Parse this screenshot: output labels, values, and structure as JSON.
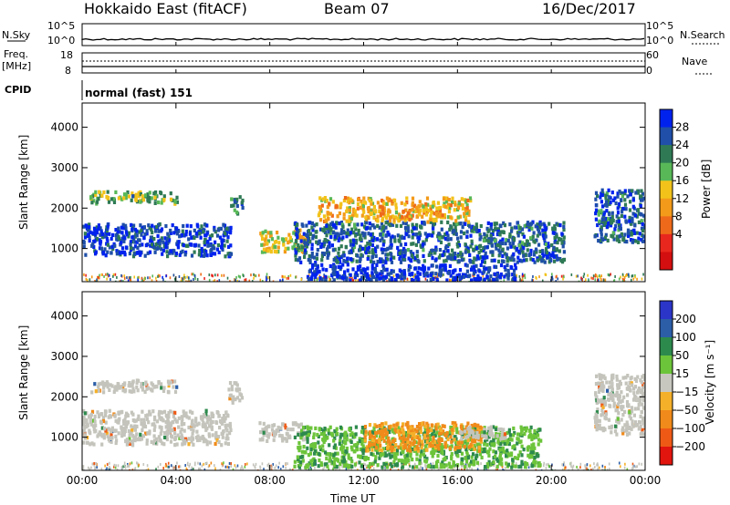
{
  "header": {
    "title": "Hokkaido East (fitACF)",
    "beam": "Beam 07",
    "date": "16/Dec/2017"
  },
  "top_panels": {
    "nsky_label": "N.Sky",
    "nsky_ticks": [
      "10^5",
      "10^0"
    ],
    "nsearch_label": "N.Search",
    "nsearch_ticks": [
      "10^5",
      "10^0"
    ],
    "freq_label_1": "Freq.",
    "freq_label_2": "[MHz]",
    "freq_ticks": [
      "18",
      "8"
    ],
    "nave_label": "Nave",
    "nave_ticks": [
      "60",
      "0"
    ],
    "cpid_label": "CPID",
    "cpid_value": "normal (fast) 151"
  },
  "colors": {
    "power_scale": [
      "#0022ee",
      "#1f4fa8",
      "#2f7a55",
      "#58b858",
      "#f2c21a",
      "#f39a1a",
      "#ee6a1a",
      "#e8281e",
      "#d40f0f"
    ],
    "velocity_scale": [
      "#2b35c8",
      "#2c5ea8",
      "#2d8a4d",
      "#6cc43a",
      "#c7c7c0",
      "#f5b02a",
      "#f08a1a",
      "#ee5a16",
      "#e2140e"
    ],
    "ground_scatter": "#c4c4bc"
  },
  "chart_data": [
    {
      "type": "heatmap",
      "panel": "power",
      "ylabel": "Slant Range [km]",
      "y_ticks": [
        1000,
        2000,
        3000,
        4000
      ],
      "ylim": [
        180,
        4600
      ],
      "x_ticks": [
        "00:00",
        "04:00",
        "08:00",
        "12:00",
        "16:00",
        "20:00",
        "00:00"
      ],
      "xlim_hours": [
        0,
        24
      ],
      "colorbar": {
        "label": "Power [dB]",
        "ticks": [
          "28",
          "24",
          "20",
          "16",
          "12",
          "8",
          "4"
        ],
        "range": [
          0,
          32
        ]
      },
      "regions": [
        {
          "t0": 0.0,
          "t1": 6.3,
          "r0": 850,
          "r1": 1650,
          "value": 28
        },
        {
          "t0": 0.3,
          "t1": 4.0,
          "r0": 2150,
          "r1": 2450,
          "value": 20
        },
        {
          "t0": 6.3,
          "t1": 6.8,
          "r0": 1900,
          "r1": 2350,
          "value": 24
        },
        {
          "t0": 7.5,
          "t1": 9.5,
          "r0": 950,
          "r1": 1500,
          "value": 16
        },
        {
          "t0": 9.0,
          "t1": 20.5,
          "r0": 700,
          "r1": 1700,
          "value": 26
        },
        {
          "t0": 9.5,
          "t1": 18.5,
          "r0": 250,
          "r1": 650,
          "value": 30
        },
        {
          "t0": 10.0,
          "t1": 16.5,
          "r0": 1700,
          "r1": 2300,
          "value": 14
        },
        {
          "t0": 21.8,
          "t1": 24.0,
          "r0": 1200,
          "r1": 2500,
          "value": 26
        }
      ]
    },
    {
      "type": "heatmap",
      "panel": "velocity",
      "ylabel": "Slant Range [km]",
      "y_ticks": [
        1000,
        2000,
        3000,
        4000
      ],
      "ylim": [
        180,
        4600
      ],
      "x_ticks": [
        "00:00",
        "04:00",
        "08:00",
        "12:00",
        "16:00",
        "20:00",
        "00:00"
      ],
      "xlabel": "Time UT",
      "xlim_hours": [
        0,
        24
      ],
      "colorbar": {
        "label": "Velocity [m s⁻¹]",
        "ticks": [
          "200",
          "100",
          "50",
          "15",
          "−15",
          "−50",
          "−100",
          "−200"
        ],
        "range": [
          -250,
          250
        ]
      },
      "regions": [
        {
          "t0": 0.0,
          "t1": 6.3,
          "r0": 850,
          "r1": 1700,
          "value": 0
        },
        {
          "t0": 0.3,
          "t1": 4.0,
          "r0": 2150,
          "r1": 2450,
          "value": 0
        },
        {
          "t0": 6.2,
          "t1": 6.8,
          "r0": 1900,
          "r1": 2400,
          "value": 0
        },
        {
          "t0": 7.5,
          "t1": 9.5,
          "r0": 950,
          "r1": 1400,
          "value": 0
        },
        {
          "t0": 9.0,
          "t1": 19.5,
          "r0": 300,
          "r1": 1300,
          "value": 40
        },
        {
          "t0": 12.0,
          "t1": 17.0,
          "r0": 700,
          "r1": 1400,
          "value": -60
        },
        {
          "t0": 16.0,
          "t1": 18.0,
          "r0": 1000,
          "r1": 1300,
          "value": 0
        },
        {
          "t0": 21.8,
          "t1": 24.0,
          "r0": 1100,
          "r1": 2600,
          "value": 0
        }
      ]
    }
  ]
}
